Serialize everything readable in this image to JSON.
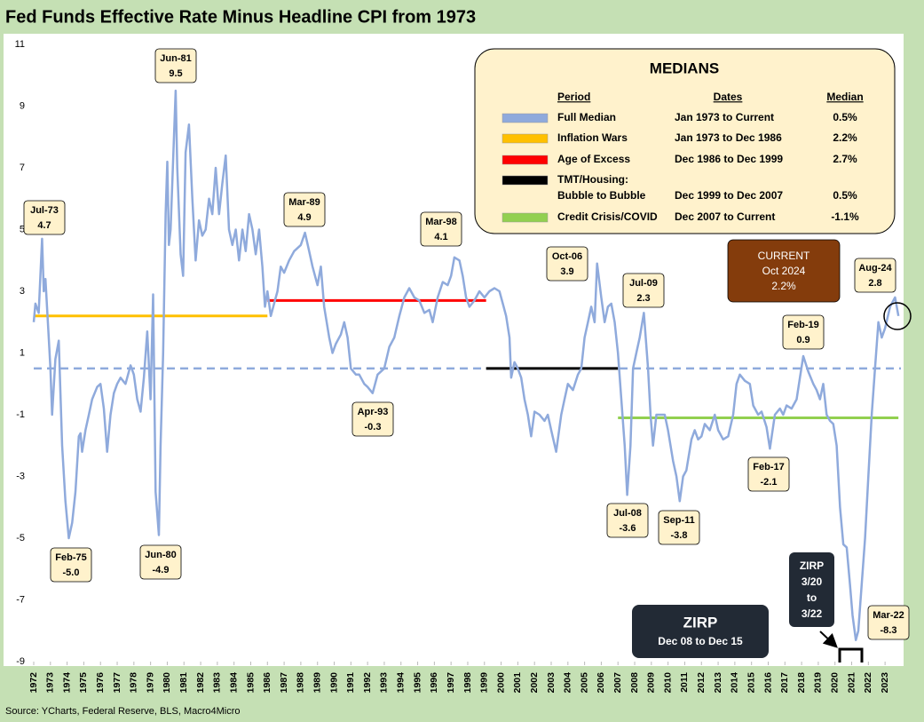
{
  "chart_data": {
    "type": "line",
    "title": "Fed Funds Effective Rate Minus Headline CPI from 1973",
    "source": "Source: YCharts, Federal Reserve, BLS, Macro4Micro",
    "xlim": [
      1973,
      2024.95
    ],
    "ylim": [
      -9,
      11
    ],
    "yticks": [
      11,
      9,
      7,
      5,
      3,
      1,
      -1,
      -3,
      -5,
      -7,
      -9
    ],
    "xticks": [
      {
        "value": 1973,
        "label": "1972"
      },
      {
        "value": 1974,
        "label": "1973"
      },
      {
        "value": 1975,
        "label": "1974"
      },
      {
        "value": 1976,
        "label": "1975"
      },
      {
        "value": 1977,
        "label": "1976"
      },
      {
        "value": 1978,
        "label": "1977"
      },
      {
        "value": 1979,
        "label": "1978"
      },
      {
        "value": 1980,
        "label": "1979"
      },
      {
        "value": 1981,
        "label": "1980"
      },
      {
        "value": 1982,
        "label": "1981"
      },
      {
        "value": 1983,
        "label": "1982"
      },
      {
        "value": 1984,
        "label": "1983"
      },
      {
        "value": 1985,
        "label": "1984"
      },
      {
        "value": 1986,
        "label": "1985"
      },
      {
        "value": 1987,
        "label": "1986"
      },
      {
        "value": 1988,
        "label": "1987"
      },
      {
        "value": 1989,
        "label": "1988"
      },
      {
        "value": 1990,
        "label": "1989"
      },
      {
        "value": 1991,
        "label": "1990"
      },
      {
        "value": 1992,
        "label": "1991"
      },
      {
        "value": 1993,
        "label": "1992"
      },
      {
        "value": 1994,
        "label": "1993"
      },
      {
        "value": 1995,
        "label": "1994"
      },
      {
        "value": 1996,
        "label": "1995"
      },
      {
        "value": 1997,
        "label": "1996"
      },
      {
        "value": 1998,
        "label": "1997"
      },
      {
        "value": 1999,
        "label": "1998"
      },
      {
        "value": 2000,
        "label": "1999"
      },
      {
        "value": 2001,
        "label": "2000"
      },
      {
        "value": 2002,
        "label": "2001"
      },
      {
        "value": 2003,
        "label": "2002"
      },
      {
        "value": 2004,
        "label": "2003"
      },
      {
        "value": 2005,
        "label": "2004"
      },
      {
        "value": 2006,
        "label": "2005"
      },
      {
        "value": 2007,
        "label": "2006"
      },
      {
        "value": 2008,
        "label": "2007"
      },
      {
        "value": 2009,
        "label": "2008"
      },
      {
        "value": 2010,
        "label": "2009"
      },
      {
        "value": 2011,
        "label": "2010"
      },
      {
        "value": 2012,
        "label": "2011"
      },
      {
        "value": 2013,
        "label": "2012"
      },
      {
        "value": 2014,
        "label": "2013"
      },
      {
        "value": 2015,
        "label": "2014"
      },
      {
        "value": 2016,
        "label": "2015"
      },
      {
        "value": 2017,
        "label": "2016"
      },
      {
        "value": 2018,
        "label": "2017"
      },
      {
        "value": 2019,
        "label": "2018"
      },
      {
        "value": 2020,
        "label": "2019"
      },
      {
        "value": 2021,
        "label": "2020"
      },
      {
        "value": 2022,
        "label": "2021"
      },
      {
        "value": 2023,
        "label": "2022"
      },
      {
        "value": 2024,
        "label": "2023"
      }
    ],
    "series": [
      {
        "color": "#8faadc",
        "x": [
          1973.0,
          1973.1,
          1973.3,
          1973.5,
          1973.6,
          1973.7,
          1973.9,
          1974.0,
          1974.1,
          1974.3,
          1974.5,
          1974.7,
          1974.9,
          1975.1,
          1975.3,
          1975.5,
          1975.7,
          1975.8,
          1975.9,
          1976.1,
          1976.3,
          1976.5,
          1976.8,
          1977.0,
          1977.2,
          1977.4,
          1977.6,
          1977.8,
          1978.0,
          1978.2,
          1978.5,
          1978.8,
          1979.0,
          1979.2,
          1979.4,
          1979.6,
          1979.8,
          1980.0,
          1980.15,
          1980.3,
          1980.5,
          1980.6,
          1980.75,
          1980.9,
          1981.0,
          1981.1,
          1981.2,
          1981.5,
          1981.6,
          1981.8,
          1981.95,
          1982.1,
          1982.3,
          1982.5,
          1982.7,
          1982.9,
          1983.1,
          1983.3,
          1983.5,
          1983.7,
          1983.9,
          1984.1,
          1984.3,
          1984.5,
          1984.7,
          1984.9,
          1985.1,
          1985.3,
          1985.5,
          1985.7,
          1985.9,
          1986.1,
          1986.3,
          1986.5,
          1986.7,
          1986.85,
          1987.0,
          1987.2,
          1987.4,
          1987.6,
          1987.8,
          1988.0,
          1988.3,
          1988.6,
          1989.0,
          1989.25,
          1989.5,
          1989.7,
          1990.0,
          1990.2,
          1990.4,
          1990.7,
          1990.9,
          1991.1,
          1991.4,
          1991.6,
          1991.8,
          1992.0,
          1992.3,
          1992.5,
          1992.8,
          1993.0,
          1993.3,
          1993.6,
          1994.0,
          1994.3,
          1994.6,
          1994.9,
          1995.2,
          1995.5,
          1995.8,
          1996.1,
          1996.4,
          1996.7,
          1996.9,
          1997.2,
          1997.5,
          1997.8,
          1998.0,
          1998.2,
          1998.5,
          1998.7,
          1998.9,
          1999.1,
          1999.4,
          1999.7,
          2000.0,
          2000.3,
          2000.6,
          2000.9,
          2001.1,
          2001.3,
          2001.5,
          2001.6,
          2001.8,
          2002.0,
          2002.2,
          2002.4,
          2002.6,
          2002.8,
          2003.0,
          2003.3,
          2003.6,
          2003.8,
          2004.0,
          2004.3,
          2004.6,
          2004.8,
          2005.0,
          2005.3,
          2005.6,
          2005.8,
          2006.0,
          2006.2,
          2006.4,
          2006.6,
          2006.75,
          2007.0,
          2007.2,
          2007.4,
          2007.6,
          2007.8,
          2008.0,
          2008.2,
          2008.4,
          2008.55,
          2008.75,
          2008.9,
          2009.1,
          2009.3,
          2009.55,
          2009.8,
          2009.95,
          2010.1,
          2010.3,
          2010.6,
          2010.8,
          2011.0,
          2011.3,
          2011.5,
          2011.7,
          2011.9,
          2012.1,
          2012.4,
          2012.6,
          2012.8,
          2013.0,
          2013.2,
          2013.5,
          2013.8,
          2014.0,
          2014.3,
          2014.6,
          2014.9,
          2015.1,
          2015.3,
          2015.6,
          2015.9,
          2016.1,
          2016.4,
          2016.6,
          2016.9,
          2017.1,
          2017.4,
          2017.7,
          2017.9,
          2018.1,
          2018.4,
          2018.7,
          2018.9,
          2019.1,
          2019.4,
          2019.7,
          2019.9,
          2020.1,
          2020.3,
          2020.5,
          2020.7,
          2020.9,
          2021.1,
          2021.3,
          2021.5,
          2021.7,
          2021.9,
          2022.05,
          2022.25,
          2022.4,
          2022.6,
          2022.8,
          2023.0,
          2023.2,
          2023.4,
          2023.6,
          2023.8,
          2024.0,
          2024.3,
          2024.6,
          2024.8
        ],
        "values": [
          2.0,
          2.6,
          2.3,
          4.7,
          3.0,
          3.4,
          1.5,
          0.5,
          -1.0,
          0.8,
          1.4,
          -2.0,
          -3.8,
          -5.0,
          -4.5,
          -3.5,
          -1.7,
          -1.6,
          -2.2,
          -1.5,
          -1.0,
          -0.5,
          -0.1,
          0.0,
          -0.8,
          -2.2,
          -1.0,
          -0.3,
          0.0,
          0.2,
          0.0,
          0.6,
          0.3,
          -0.5,
          -0.9,
          0.2,
          1.7,
          -0.5,
          2.9,
          -3.5,
          -4.9,
          -2.0,
          1.0,
          5.5,
          7.2,
          4.5,
          5.0,
          9.5,
          7.0,
          4.2,
          3.5,
          7.5,
          8.4,
          6.0,
          4.0,
          5.3,
          4.8,
          5.0,
          6.0,
          5.5,
          7.0,
          5.5,
          6.5,
          7.4,
          5.0,
          4.5,
          5.0,
          4.0,
          5.0,
          4.3,
          5.5,
          5.0,
          4.2,
          5.0,
          3.8,
          2.5,
          3.0,
          2.2,
          2.6,
          3.0,
          3.8,
          3.6,
          4.0,
          4.3,
          4.5,
          4.9,
          4.3,
          3.8,
          3.2,
          3.8,
          2.5,
          1.5,
          1.0,
          1.3,
          1.6,
          2.0,
          1.5,
          0.5,
          0.3,
          0.3,
          0.0,
          -0.1,
          -0.3,
          0.3,
          0.5,
          1.2,
          1.5,
          2.2,
          2.8,
          3.1,
          2.8,
          2.7,
          2.3,
          2.4,
          2.0,
          2.8,
          3.3,
          3.2,
          3.5,
          4.1,
          4.0,
          3.5,
          2.8,
          2.5,
          2.7,
          3.0,
          2.8,
          3.0,
          3.1,
          3.0,
          2.6,
          2.2,
          1.5,
          0.2,
          0.7,
          0.5,
          0.2,
          -0.5,
          -1.0,
          -1.7,
          -0.9,
          -1.0,
          -1.2,
          -1.0,
          -1.5,
          -2.2,
          -1.0,
          -0.5,
          0.0,
          -0.2,
          0.3,
          0.5,
          1.5,
          2.0,
          2.5,
          2.0,
          3.9,
          2.8,
          2.0,
          2.5,
          2.6,
          2.0,
          1.0,
          -0.5,
          -2.0,
          -3.6,
          -2.0,
          0.5,
          1.0,
          1.5,
          2.3,
          0.5,
          -1.0,
          -2.0,
          -1.0,
          -1.0,
          -1.0,
          -1.5,
          -2.5,
          -3.0,
          -3.8,
          -3.0,
          -2.8,
          -1.8,
          -1.5,
          -1.8,
          -1.7,
          -1.3,
          -1.5,
          -1.0,
          -1.5,
          -1.8,
          -1.7,
          -1.0,
          0.0,
          0.3,
          0.1,
          0.0,
          -0.7,
          -1.0,
          -0.9,
          -1.4,
          -2.1,
          -1.0,
          -0.8,
          -1.0,
          -0.7,
          -0.8,
          -0.5,
          0.2,
          0.9,
          0.4,
          0.0,
          -0.2,
          -0.5,
          0.0,
          -1.0,
          -1.2,
          -1.3,
          -2.0,
          -4.0,
          -5.2,
          -5.3,
          -6.5,
          -7.5,
          -8.3,
          -8.0,
          -6.5,
          -5.0,
          -3.0,
          -1.0,
          0.5,
          2.0,
          1.5,
          1.8,
          2.5,
          2.8,
          2.2
        ]
      }
    ],
    "medians": {
      "title": "MEDIANS",
      "headers": [
        "Period",
        "Dates",
        "Median"
      ],
      "rows": [
        {
          "period": [
            "Full Median"
          ],
          "dates": "Jan 1973 to Current",
          "value": 0.5,
          "value_label": "0.5%",
          "color": "#8faadc",
          "style": "dashed",
          "x": [
            1973,
            2024.95
          ]
        },
        {
          "period": [
            "Inflation Wars"
          ],
          "dates": "Jan 1973 to Dec 1986",
          "value": 2.2,
          "value_label": "2.2%",
          "color": "#ffc000",
          "style": "solid",
          "x": [
            1973,
            1987.0
          ]
        },
        {
          "period": [
            "Age of Excess"
          ],
          "dates": "Dec 1986 to Dec 1999",
          "value": 2.7,
          "value_label": "2.7%",
          "color": "#ff0000",
          "style": "solid",
          "x": [
            1987.0,
            2000.1
          ]
        },
        {
          "period": [
            "TMT/Housing:",
            "Bubble to Bubble"
          ],
          "dates": "Dec 1999 to Dec 2007",
          "value": 0.5,
          "value_label": "0.5%",
          "color": "#000000",
          "style": "solid",
          "x": [
            2000.1,
            2008.0
          ]
        },
        {
          "period": [
            "Credit Crisis/COVID"
          ],
          "dates": "Dec 2007 to Current",
          "value": -1.1,
          "value_label": "-1.1%",
          "color": "#92d050",
          "style": "solid",
          "x": [
            2008.0,
            2024.8
          ]
        }
      ]
    },
    "annotations": [
      {
        "date": "Jul-73",
        "value": 4.7
      },
      {
        "date": "Feb-75",
        "value": -5,
        "value_label": "-5.0"
      },
      {
        "date": "Jun-80",
        "value": -4.9
      },
      {
        "date": "Jun-81",
        "value": 9.5
      },
      {
        "date": "Mar-89",
        "value": 4.9
      },
      {
        "date": "Apr-93",
        "value": -0.3
      },
      {
        "date": "Mar-98",
        "value": 4.1
      },
      {
        "date": "Oct-06",
        "value": 3.9
      },
      {
        "date": "Jul-08",
        "value": -3.6
      },
      {
        "date": "Jul-09",
        "value": 2.3
      },
      {
        "date": "Sep-11",
        "value": -3.8
      },
      {
        "date": "Feb-17",
        "value": -2.1
      },
      {
        "date": "Feb-19",
        "value": 0.9
      },
      {
        "date": "Aug-24",
        "value": 2.8
      },
      {
        "date": "Mar-22",
        "value": -8.3
      }
    ],
    "current_box": [
      "CURRENT",
      "Oct 2024",
      "2.2%"
    ],
    "zirp_box": [
      "ZIRP",
      "Dec 08 to Dec 15"
    ],
    "zirp2_box": [
      "ZIRP",
      "3/20",
      "to",
      "3/22"
    ]
  }
}
